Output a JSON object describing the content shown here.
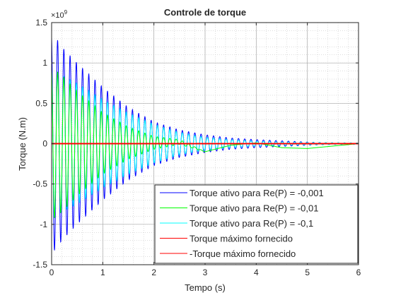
{
  "chart_data": {
    "type": "line",
    "title": "Controle de torque",
    "xlabel": "Tempo (s)",
    "ylabel": "Torque (N.m)",
    "y_exponent_base": "×10",
    "y_exponent_power": "9",
    "xlim": [
      0,
      6
    ],
    "ylim": [
      -1.5,
      1.5
    ],
    "x_ticks": [
      0,
      1,
      2,
      3,
      4,
      5,
      6
    ],
    "x_tick_labels": [
      "0",
      "1",
      "2",
      "3",
      "4",
      "5",
      "6"
    ],
    "y_ticks": [
      -1.5,
      -1,
      -0.5,
      0,
      0.5,
      1,
      1.5
    ],
    "y_tick_labels": [
      "-1.5",
      "-1",
      "-0.5",
      "0",
      "0.5",
      "1",
      "1.5"
    ],
    "grid": true,
    "minor_grid": true,
    "legend_position": "bottom-right",
    "series": [
      {
        "name": "Torque ativo para Re(P) = -0,001",
        "color": "#0000ff",
        "model": "damped_oscillation",
        "x": [
          0,
          0.1,
          0.2,
          0.5,
          1.0,
          1.5,
          2.0,
          2.5,
          3.0,
          3.5,
          4.0,
          4.5,
          5.0,
          5.5,
          6.0
        ],
        "envelope": [
          1.35,
          1.3,
          1.2,
          1.0,
          0.7,
          0.45,
          0.27,
          0.17,
          0.11,
          0.07,
          0.05,
          0.035,
          0.02,
          0.01,
          0.0
        ],
        "cycles_per_second": 8.2
      },
      {
        "name": "Torque ativo para Re(P) = -0,01",
        "color": "#00ff00",
        "model": "damped_oscillation",
        "x": [
          0,
          0.2,
          0.5,
          1.0,
          1.5,
          2.0,
          2.5,
          3.0
        ],
        "envelope": [
          0.95,
          0.85,
          0.65,
          0.38,
          0.2,
          0.08,
          0.03,
          0.0
        ],
        "cycles_per_second": 8.2,
        "drift_x": [
          0,
          2.0,
          2.5,
          3.0,
          3.5,
          4.0,
          4.5,
          5.0,
          5.5,
          6.0
        ],
        "drift_y": [
          0,
          0.01,
          0.02,
          -0.1,
          -0.02,
          0.01,
          -0.05,
          -0.06,
          -0.03,
          0.0
        ]
      },
      {
        "name": "Torque ativo para Re(P) = -0,1",
        "color": "#00ffff",
        "model": "damped_oscillation",
        "x": [
          0,
          0.2,
          0.5,
          1.0,
          1.5,
          2.0,
          2.5,
          3.0,
          3.5,
          4.0,
          4.5,
          5.0,
          6.0
        ],
        "envelope": [
          0.92,
          0.85,
          0.75,
          0.55,
          0.38,
          0.24,
          0.14,
          0.08,
          0.05,
          0.03,
          0.02,
          0.015,
          0.01
        ],
        "cycles_per_second": 8.2
      },
      {
        "name": "Torque máximo fornecido",
        "color": "#ff0000",
        "x": [
          0,
          6
        ],
        "values": [
          0.004,
          0.004
        ]
      },
      {
        "name": "-Torque máximo fornecido",
        "color": "#ff0000",
        "x": [
          0,
          6
        ],
        "values": [
          -0.004,
          -0.004
        ]
      }
    ]
  }
}
